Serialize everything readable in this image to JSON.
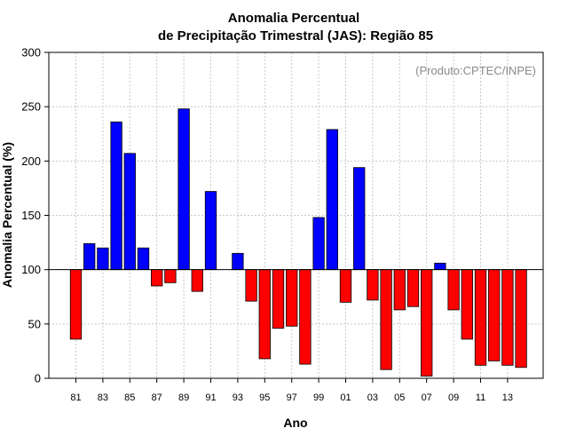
{
  "chart_data": {
    "type": "bar",
    "title": [
      "Anomalia Percentual",
      "de Precipitação Trimestral (JAS): Região 85"
    ],
    "xlabel": "Ano",
    "ylabel": "Anomalia Percentual (%)",
    "credit": "(Produto:CPTEC/INPE)",
    "ylim": [
      0,
      300
    ],
    "yticks": [
      0,
      50,
      100,
      150,
      200,
      250,
      300
    ],
    "baseline": 100,
    "xtick_labels": [
      "81",
      "83",
      "85",
      "87",
      "89",
      "91",
      "93",
      "95",
      "97",
      "99",
      "01",
      "03",
      "05",
      "07",
      "09",
      "11",
      "13"
    ],
    "grid": true,
    "colors": {
      "above": "#0000ff",
      "below": "#ff0000",
      "edge": "#000000",
      "grid": "#c8c8c8"
    },
    "categories": [
      "81",
      "82",
      "83",
      "84",
      "85",
      "86",
      "87",
      "88",
      "89",
      "90",
      "91",
      "92",
      "93",
      "94",
      "95",
      "96",
      "97",
      "98",
      "99",
      "00",
      "01",
      "02",
      "03",
      "04",
      "05",
      "06",
      "07",
      "08",
      "09",
      "10",
      "11",
      "12",
      "13",
      "14"
    ],
    "values": [
      36,
      124,
      120,
      236,
      207,
      120,
      85,
      88,
      248,
      80,
      172,
      100,
      115,
      71,
      18,
      46,
      48,
      13,
      148,
      229,
      70,
      194,
      72,
      8,
      63,
      66,
      2,
      106,
      63,
      36,
      12,
      16,
      12,
      10
    ]
  }
}
